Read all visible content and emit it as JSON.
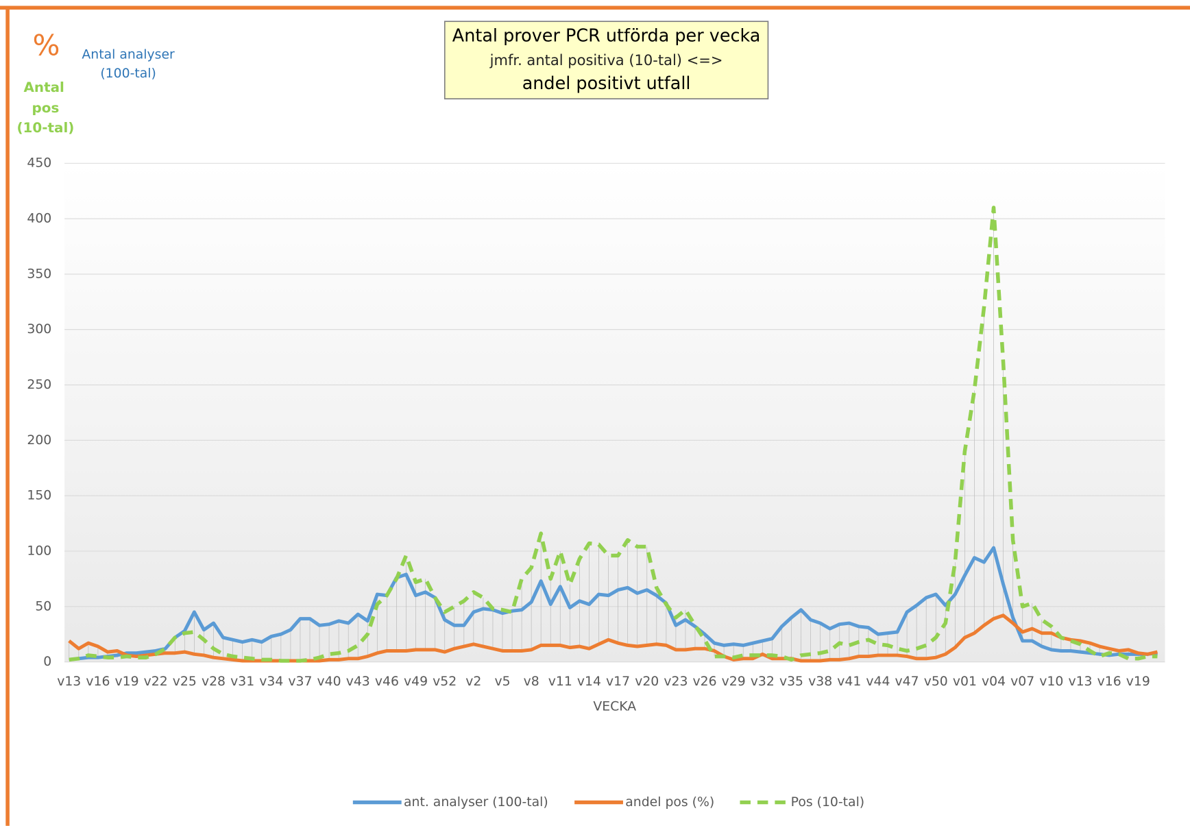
{
  "chart_data": {
    "type": "line",
    "title_lines": [
      "Antal prover PCR utförda per vecka",
      "jmfr. antal positiva (10-tal) <=>",
      "andel positivt utfall"
    ],
    "y_label_percent": "%",
    "y_label_analyses": [
      "Antal analyser",
      "(100-tal)"
    ],
    "y_label_pos": [
      "Antal",
      "pos",
      "(10-tal)"
    ],
    "xlabel": "VECKA",
    "categories": [
      "v13",
      null,
      null,
      "v16",
      null,
      null,
      "v19",
      null,
      null,
      "v22",
      null,
      null,
      "v25",
      null,
      null,
      "v28",
      null,
      null,
      "v31",
      null,
      null,
      "v34",
      null,
      null,
      "v37",
      null,
      null,
      "v40",
      null,
      null,
      "v43",
      null,
      null,
      "v46",
      null,
      null,
      "v49",
      null,
      null,
      "v52",
      null,
      null,
      "v2",
      null,
      null,
      "v5",
      null,
      null,
      "v8",
      null,
      null,
      "v11",
      null,
      null,
      "v14",
      null,
      null,
      "v17",
      null,
      null,
      "v20",
      null,
      null,
      "v23",
      null,
      null,
      "v26",
      null,
      null,
      "v29",
      null,
      null,
      "v32",
      null,
      null,
      "v35",
      null,
      null,
      "v38",
      null,
      null,
      "v41",
      null,
      null,
      "v44",
      null,
      null,
      "v47",
      null,
      null,
      "v50",
      null,
      null,
      "v01",
      null,
      null,
      "v04",
      null,
      null,
      "v07",
      null,
      null,
      "v10",
      null,
      null,
      "v13",
      null,
      null,
      "v16",
      null,
      null,
      "v19",
      null,
      null
    ],
    "series": [
      {
        "name": "ant. analyser (100-tal)",
        "color": "#5b9bd5",
        "dashed": false,
        "values": [
          2,
          3,
          4,
          4,
          5,
          6,
          8,
          8,
          9,
          10,
          12,
          22,
          28,
          45,
          29,
          35,
          22,
          20,
          18,
          20,
          18,
          23,
          25,
          29,
          39,
          39,
          33,
          34,
          37,
          35,
          43,
          37,
          61,
          60,
          76,
          79,
          60,
          63,
          58,
          38,
          33,
          33,
          45,
          48,
          47,
          44,
          46,
          47,
          54,
          73,
          52,
          68,
          49,
          55,
          52,
          61,
          60,
          65,
          67,
          62,
          65,
          60,
          53,
          33,
          38,
          32,
          25,
          17,
          15,
          16,
          15,
          17,
          19,
          21,
          32,
          40,
          47,
          38,
          35,
          30,
          34,
          35,
          32,
          31,
          25,
          26,
          27,
          45,
          51,
          58,
          61,
          51,
          61,
          78,
          94,
          90,
          103,
          70,
          40,
          19,
          19,
          14,
          11,
          10,
          10,
          9,
          8,
          7,
          6,
          7,
          7,
          7,
          7,
          8
        ]
      },
      {
        "name": "andel pos (%)",
        "color": "#ed7d31",
        "dashed": false,
        "values": [
          19,
          12,
          17,
          14,
          9,
          10,
          6,
          5,
          6,
          7,
          8,
          8,
          9,
          7,
          6,
          4,
          3,
          2,
          1,
          1,
          1,
          1,
          1,
          1,
          1,
          1,
          1,
          2,
          2,
          3,
          3,
          5,
          8,
          10,
          10,
          10,
          11,
          11,
          11,
          9,
          12,
          14,
          16,
          14,
          12,
          10,
          10,
          10,
          11,
          15,
          15,
          15,
          13,
          14,
          12,
          16,
          20,
          17,
          15,
          14,
          15,
          16,
          15,
          11,
          11,
          12,
          12,
          10,
          5,
          2,
          3,
          3,
          7,
          3,
          3,
          3,
          1,
          1,
          1,
          2,
          2,
          3,
          5,
          5,
          6,
          6,
          6,
          5,
          3,
          3,
          4,
          7,
          13,
          22,
          26,
          33,
          39,
          42,
          35,
          27,
          30,
          26,
          26,
          22,
          20,
          19,
          17,
          14,
          12,
          10,
          11,
          8,
          7,
          9
        ]
      },
      {
        "name": "Pos (10-tal)",
        "color": "#92d050",
        "dashed": true,
        "values": [
          2,
          3,
          6,
          5,
          4,
          4,
          5,
          4,
          4,
          7,
          12,
          22,
          26,
          27,
          20,
          12,
          7,
          5,
          4,
          3,
          2,
          2,
          1,
          1,
          1,
          2,
          4,
          7,
          8,
          10,
          15,
          25,
          52,
          60,
          75,
          96,
          72,
          75,
          58,
          45,
          50,
          55,
          63,
          58,
          48,
          47,
          45,
          75,
          85,
          116,
          75,
          100,
          70,
          93,
          107,
          106,
          96,
          96,
          110,
          104,
          104,
          67,
          52,
          40,
          47,
          33,
          20,
          5,
          5,
          4,
          6,
          6,
          6,
          6,
          5,
          2,
          6,
          7,
          8,
          10,
          17,
          15,
          18,
          20,
          16,
          15,
          12,
          10,
          12,
          15,
          22,
          35,
          90,
          190,
          245,
          320,
          410,
          270,
          110,
          50,
          53,
          38,
          32,
          22,
          19,
          16,
          10,
          5,
          8,
          7,
          3,
          3,
          5,
          5
        ]
      }
    ],
    "ylim": [
      0,
      450
    ],
    "yticks": [
      0,
      50,
      100,
      150,
      200,
      250,
      300,
      350,
      400,
      450
    ],
    "grid": true,
    "legend": "bottom"
  }
}
